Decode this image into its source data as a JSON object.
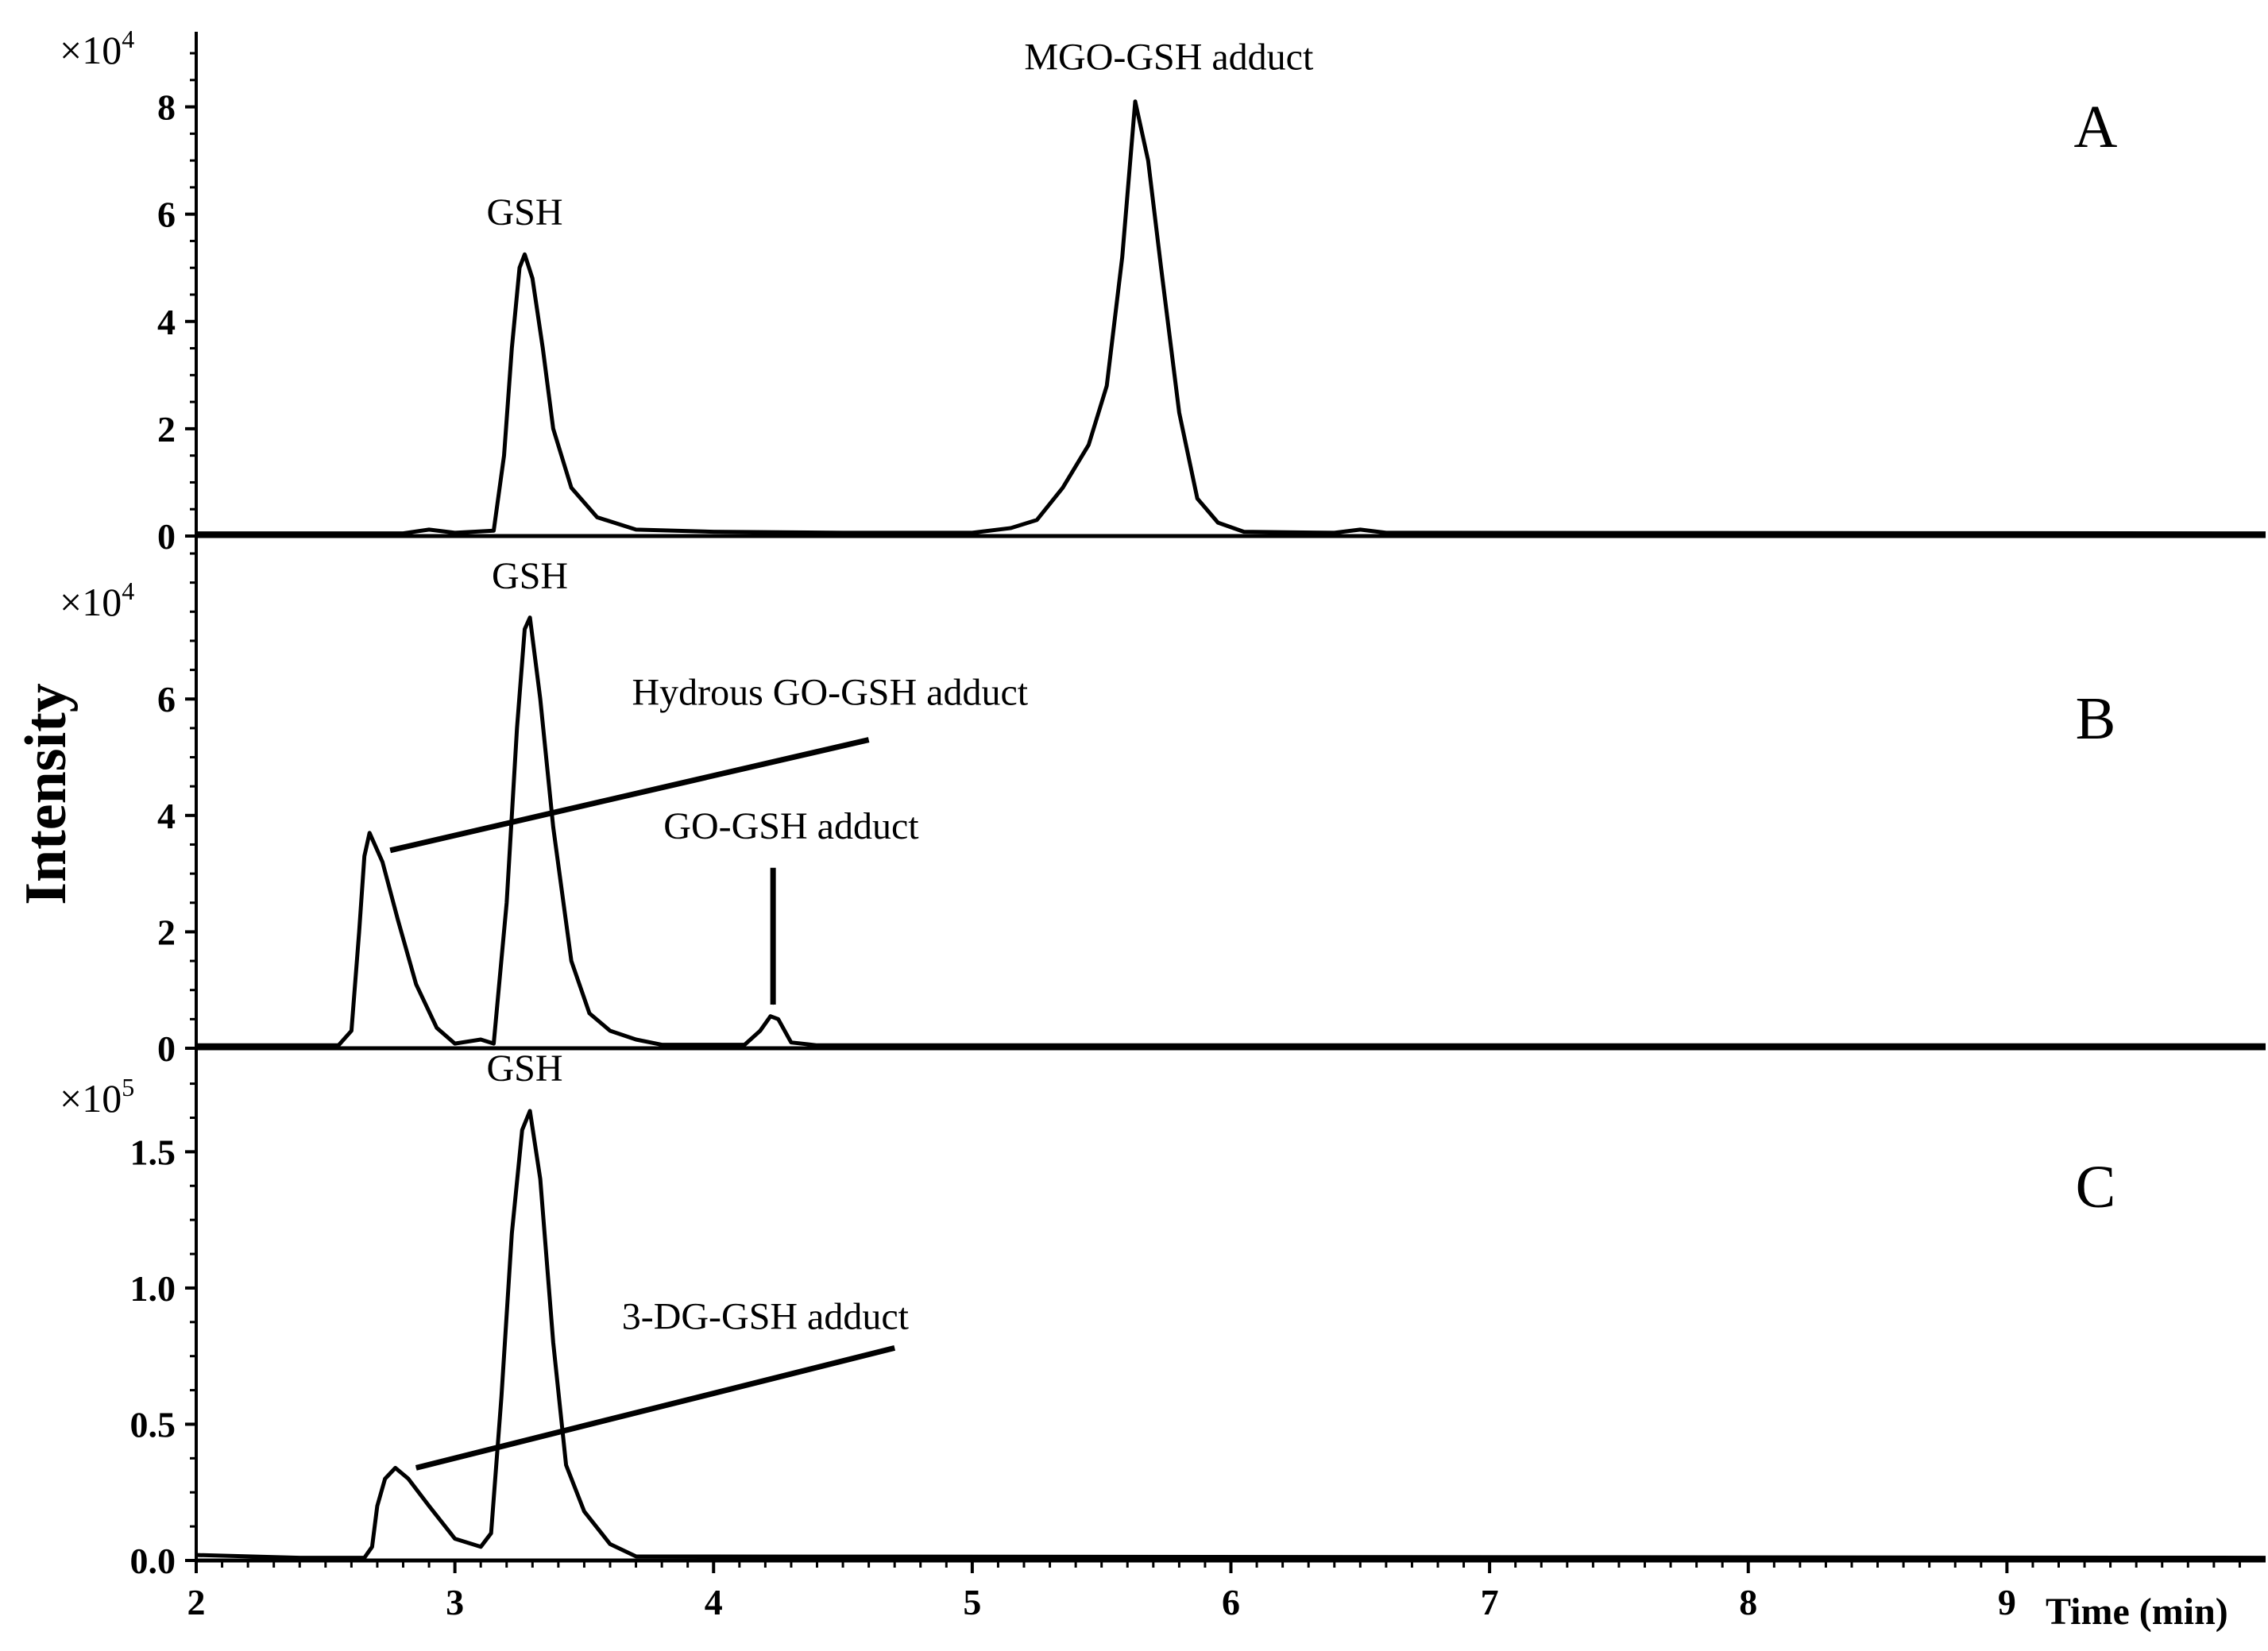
{
  "chart_data": {
    "type": "line",
    "xlabel": "Time (min)",
    "ylabel": "Intensity",
    "xlim": [
      2,
      10
    ],
    "x_ticks": [
      "2",
      "3",
      "4",
      "5",
      "6",
      "7",
      "8",
      "9"
    ],
    "panels": [
      {
        "label": "A",
        "multiplier": "×10",
        "multiplier_exp": "4",
        "ylim": [
          0,
          9.4
        ],
        "y_ticks": [
          {
            "v": 0,
            "t": "0"
          },
          {
            "v": 2,
            "t": "2"
          },
          {
            "v": 4,
            "t": "4"
          },
          {
            "v": 6,
            "t": "6"
          },
          {
            "v": 8,
            "t": "8"
          }
        ],
        "series": [
          {
            "points": [
              [
                2.0,
                0.05
              ],
              [
                2.8,
                0.05
              ],
              [
                2.9,
                0.12
              ],
              [
                3.0,
                0.06
              ],
              [
                3.15,
                0.1
              ],
              [
                3.19,
                1.5
              ],
              [
                3.22,
                3.5
              ],
              [
                3.25,
                5.0
              ],
              [
                3.27,
                5.25
              ],
              [
                3.3,
                4.8
              ],
              [
                3.34,
                3.5
              ],
              [
                3.38,
                2.0
              ],
              [
                3.45,
                0.9
              ],
              [
                3.55,
                0.35
              ],
              [
                3.7,
                0.12
              ],
              [
                4.0,
                0.08
              ],
              [
                4.5,
                0.06
              ],
              [
                5.0,
                0.06
              ],
              [
                5.15,
                0.15
              ],
              [
                5.25,
                0.3
              ],
              [
                5.35,
                0.9
              ],
              [
                5.45,
                1.7
              ],
              [
                5.52,
                2.8
              ],
              [
                5.58,
                5.2
              ],
              [
                5.63,
                8.1
              ],
              [
                5.68,
                7.0
              ],
              [
                5.73,
                5.0
              ],
              [
                5.8,
                2.3
              ],
              [
                5.87,
                0.7
              ],
              [
                5.95,
                0.25
              ],
              [
                6.05,
                0.08
              ],
              [
                6.4,
                0.06
              ],
              [
                6.5,
                0.12
              ],
              [
                6.6,
                0.06
              ],
              [
                10.0,
                0.05
              ]
            ]
          }
        ],
        "annotations": [
          {
            "text": "GSH",
            "x": 3.27,
            "y": 5.8
          },
          {
            "text": "MGO-GSH adduct",
            "x": 5.76,
            "y": 8.7
          }
        ],
        "arrows": []
      },
      {
        "label": "B",
        "multiplier": "×10",
        "multiplier_exp": "4",
        "ylim": [
          0,
          8.8
        ],
        "y_ticks": [
          {
            "v": 0,
            "t": "0"
          },
          {
            "v": 2,
            "t": "2"
          },
          {
            "v": 4,
            "t": "4"
          },
          {
            "v": 6,
            "t": "6"
          }
        ],
        "series": [
          {
            "points": [
              [
                2.0,
                0.05
              ],
              [
                2.55,
                0.05
              ],
              [
                2.6,
                0.3
              ],
              [
                2.63,
                2.0
              ],
              [
                2.65,
                3.3
              ],
              [
                2.67,
                3.7
              ],
              [
                2.72,
                3.2
              ],
              [
                2.78,
                2.2
              ],
              [
                2.85,
                1.1
              ],
              [
                2.93,
                0.35
              ],
              [
                3.0,
                0.08
              ],
              [
                3.1,
                0.15
              ],
              [
                3.15,
                0.08
              ],
              [
                3.2,
                2.5
              ],
              [
                3.24,
                5.5
              ],
              [
                3.27,
                7.2
              ],
              [
                3.29,
                7.4
              ],
              [
                3.33,
                6.0
              ],
              [
                3.38,
                3.8
              ],
              [
                3.45,
                1.5
              ],
              [
                3.52,
                0.6
              ],
              [
                3.6,
                0.3
              ],
              [
                3.7,
                0.15
              ],
              [
                3.8,
                0.06
              ],
              [
                4.12,
                0.06
              ],
              [
                4.18,
                0.3
              ],
              [
                4.22,
                0.55
              ],
              [
                4.25,
                0.5
              ],
              [
                4.3,
                0.1
              ],
              [
                4.4,
                0.05
              ],
              [
                10.0,
                0.05
              ]
            ]
          }
        ],
        "annotations": [
          {
            "text": "GSH",
            "x": 3.29,
            "y": 7.9
          },
          {
            "text": "Hydrous GO-GSH adduct",
            "x": 4.45,
            "y": 5.9
          },
          {
            "text": "GO-GSH adduct",
            "x": 4.3,
            "y": 3.6
          }
        ],
        "arrows": [
          {
            "from": [
              4.6,
              5.3
            ],
            "to": [
              2.75,
              3.4
            ]
          },
          {
            "from": [
              4.23,
              3.1
            ],
            "to": [
              4.23,
              0.75
            ]
          }
        ]
      },
      {
        "label": "C",
        "multiplier": "×10",
        "multiplier_exp": "5",
        "ylim": [
          0,
          1.88
        ],
        "y_ticks": [
          {
            "v": 0,
            "t": "0.0"
          },
          {
            "v": 0.5,
            "t": "0.5"
          },
          {
            "v": 1.0,
            "t": "1.0"
          },
          {
            "v": 1.5,
            "t": "1.5"
          }
        ],
        "series": [
          {
            "points": [
              [
                2.0,
                0.02
              ],
              [
                2.4,
                0.01
              ],
              [
                2.65,
                0.01
              ],
              [
                2.68,
                0.05
              ],
              [
                2.7,
                0.2
              ],
              [
                2.73,
                0.3
              ],
              [
                2.77,
                0.34
              ],
              [
                2.82,
                0.3
              ],
              [
                2.9,
                0.2
              ],
              [
                3.0,
                0.08
              ],
              [
                3.1,
                0.05
              ],
              [
                3.14,
                0.1
              ],
              [
                3.18,
                0.6
              ],
              [
                3.22,
                1.2
              ],
              [
                3.26,
                1.58
              ],
              [
                3.29,
                1.65
              ],
              [
                3.33,
                1.4
              ],
              [
                3.38,
                0.8
              ],
              [
                3.43,
                0.35
              ],
              [
                3.5,
                0.18
              ],
              [
                3.6,
                0.06
              ],
              [
                3.7,
                0.015
              ],
              [
                10.0,
                0.01
              ]
            ]
          }
        ],
        "annotations": [
          {
            "text": "GSH",
            "x": 3.27,
            "y": 1.76
          },
          {
            "text": "3-DG-GSH adduct",
            "x": 4.2,
            "y": 0.85
          }
        ],
        "arrows": [
          {
            "from": [
              4.7,
              0.78
            ],
            "to": [
              2.85,
              0.34
            ]
          }
        ]
      }
    ]
  }
}
